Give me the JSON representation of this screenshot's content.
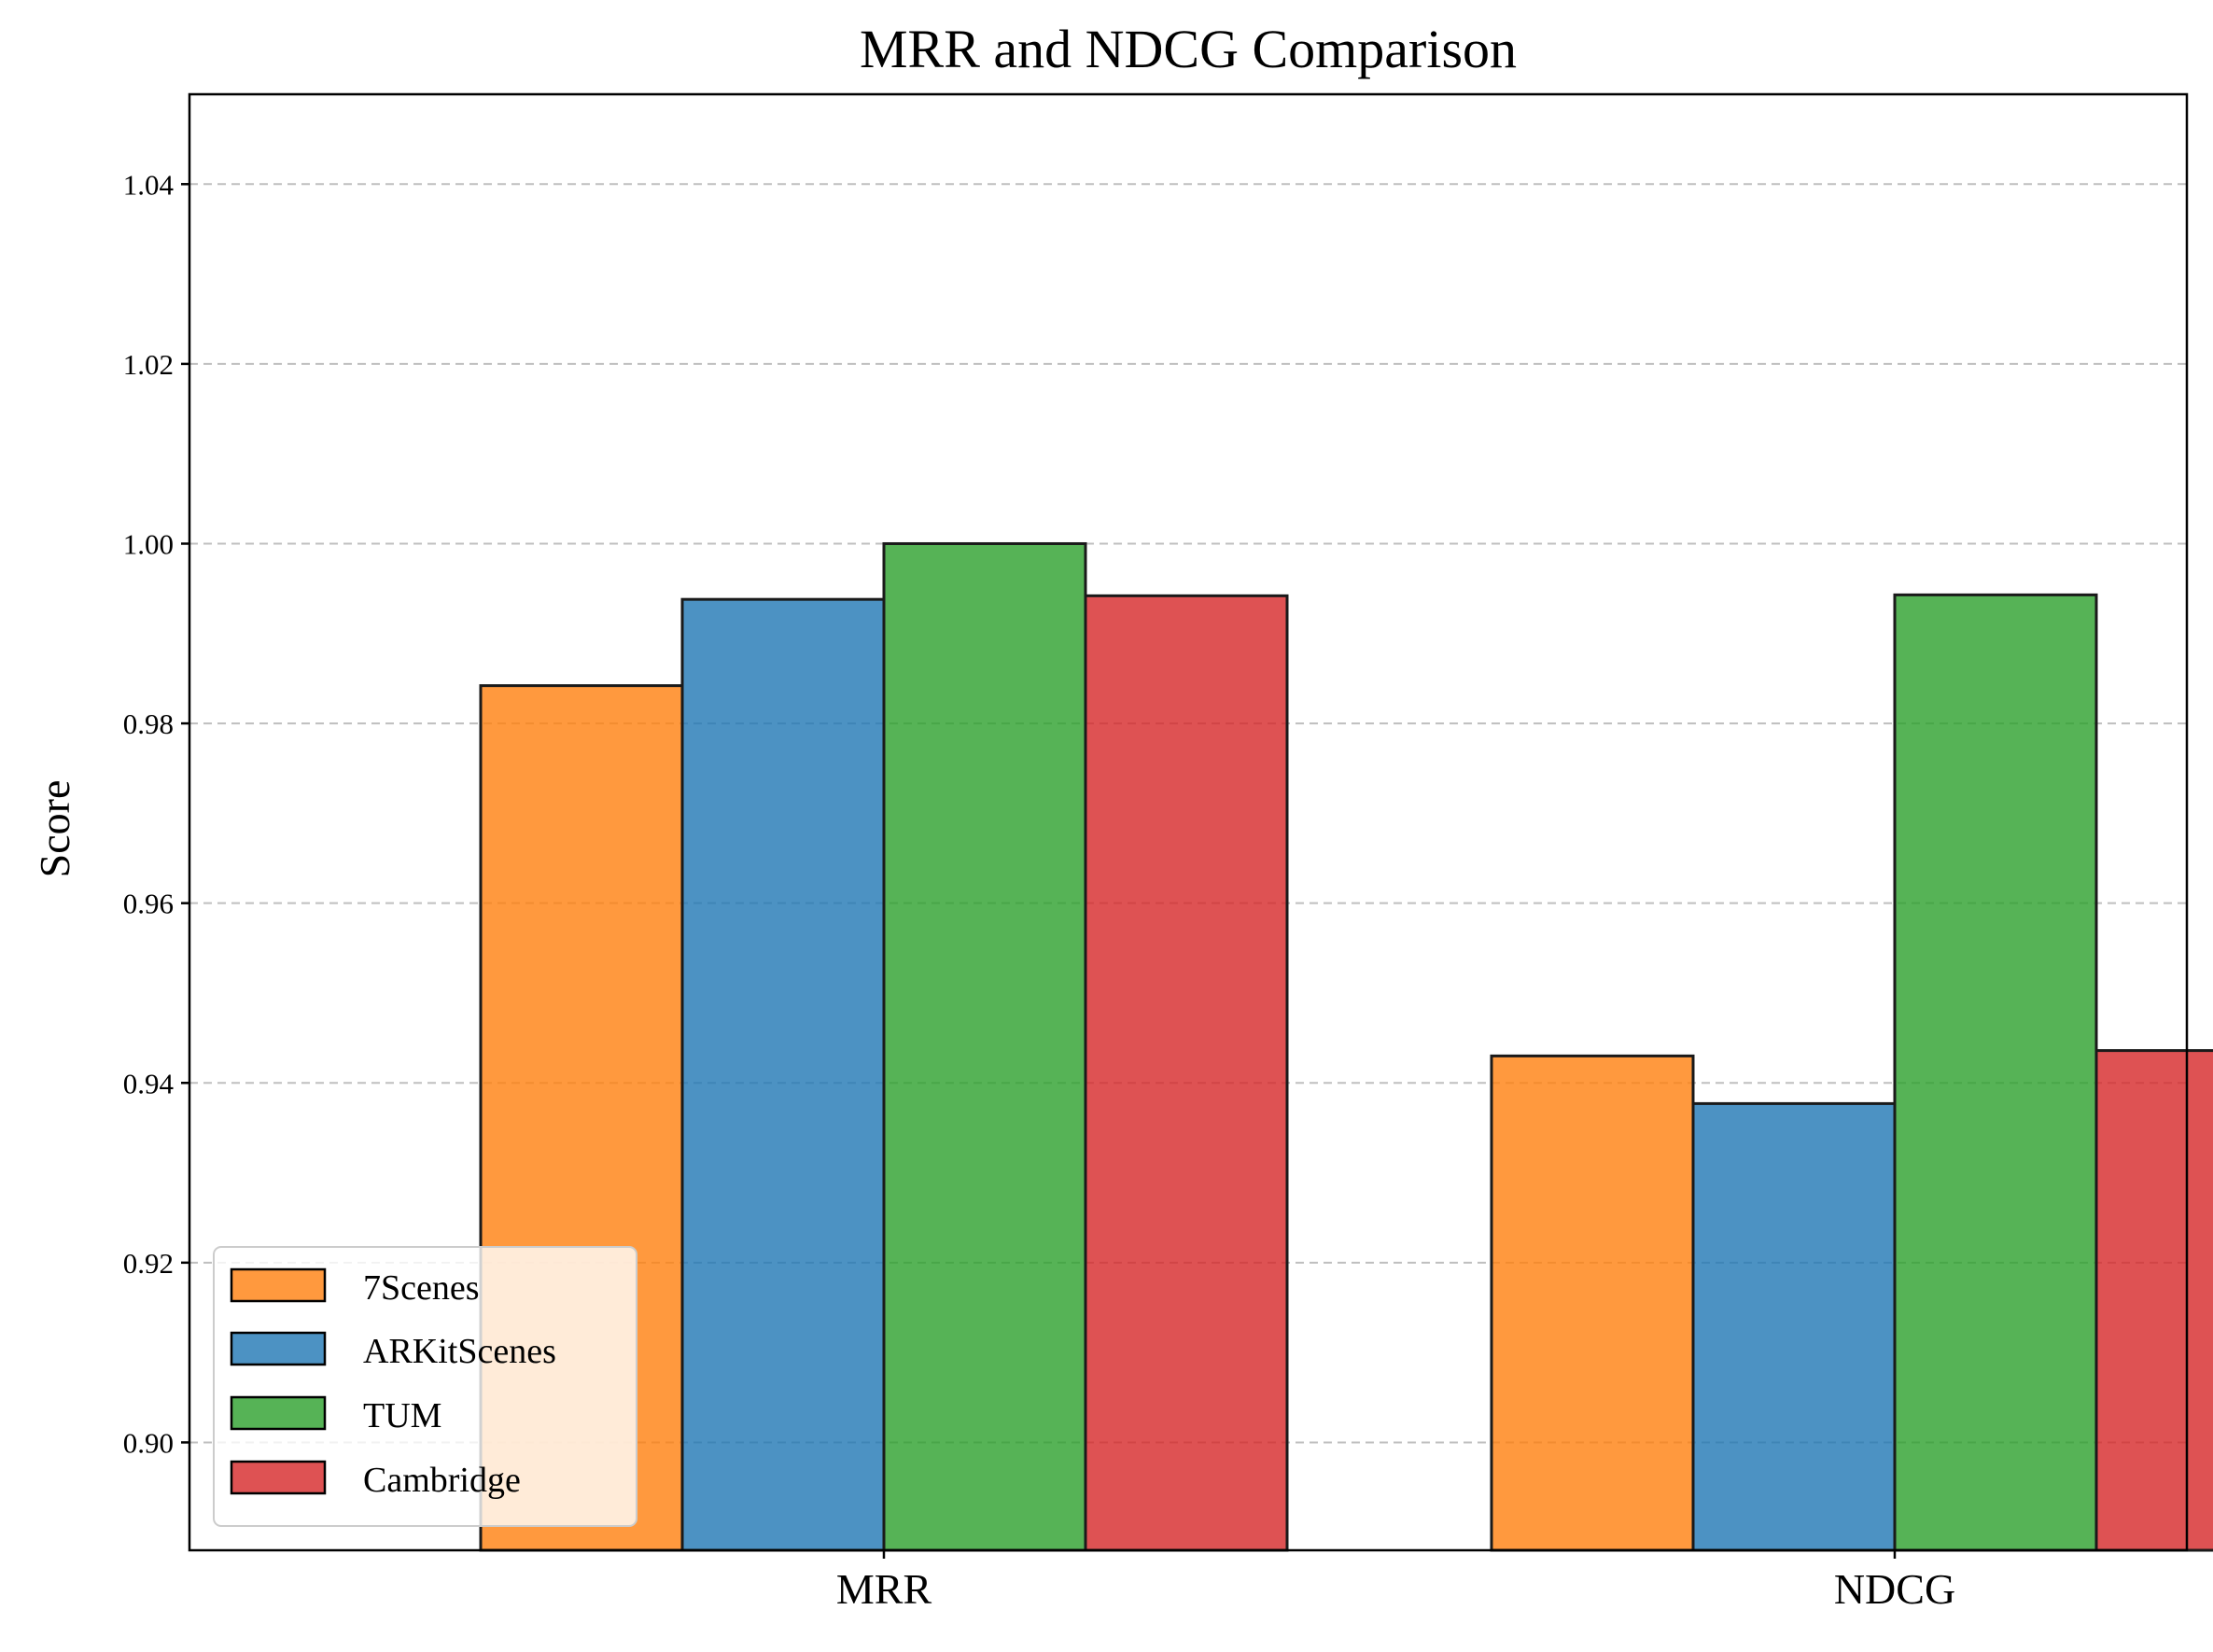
{
  "chart_data": {
    "type": "bar",
    "title": "MRR and NDCG Comparison",
    "xlabel": "",
    "ylabel": "Score",
    "categories": [
      "MRR",
      "NDCG"
    ],
    "series": [
      {
        "name": "7Scenes",
        "color": "#ff7f0e",
        "values": [
          0.9842,
          0.943
        ]
      },
      {
        "name": "ARKitScenes",
        "color": "#1f77b4",
        "values": [
          0.9938,
          0.9377
        ]
      },
      {
        "name": "TUM",
        "color": "#2ca02c",
        "values": [
          1.0,
          0.9943
        ]
      },
      {
        "name": "Cambridge",
        "color": "#d62728",
        "values": [
          0.9942,
          0.9436
        ]
      }
    ],
    "ylim": [
      0.888,
      1.05
    ],
    "yticks": [
      "0.90",
      "0.92",
      "0.94",
      "0.96",
      "0.98",
      "1.00",
      "1.02",
      "1.04"
    ],
    "grid": "y-dashed",
    "legend_position": "lower-left"
  }
}
